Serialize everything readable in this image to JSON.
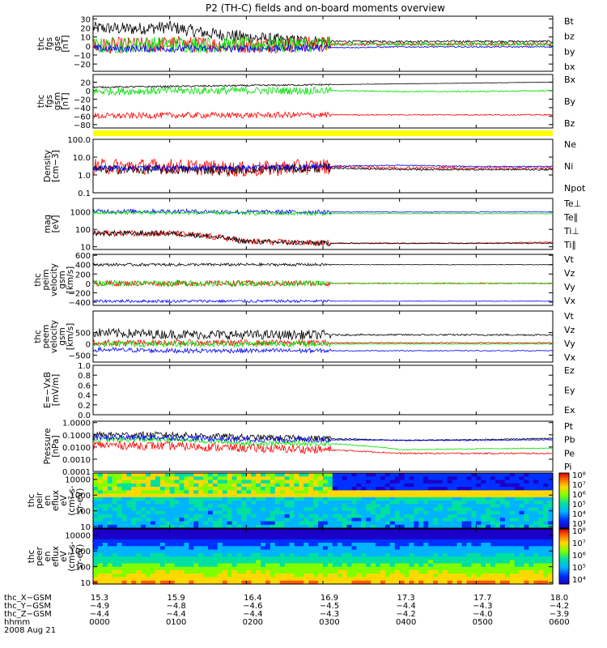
{
  "title": "P2 (TH-C) fields and on-board moments overview",
  "colors": {
    "black": "#000000",
    "red": "#ff0000",
    "green": "#00e000",
    "blue": "#0000ff",
    "yellow": "#ffff00"
  },
  "panels": [
    {
      "id": "fgs_gse",
      "ylabel": [
        "thc",
        "fgs",
        "gse",
        "[nT]"
      ],
      "ticks": [
        "30",
        "20",
        "10",
        "0",
        "−10",
        "−20"
      ],
      "tick_values": [
        30,
        20,
        10,
        0,
        -10,
        -20
      ],
      "ylim": [
        -28,
        33
      ],
      "log": false,
      "legend": [
        {
          "text": "Bt",
          "color": "#000000"
        },
        {
          "text": "bz",
          "color": "#ff0000"
        },
        {
          "text": "by",
          "color": "#00e000"
        },
        {
          "text": "bx",
          "color": "#0000ff"
        }
      ]
    },
    {
      "id": "fgs_gsm",
      "ylabel": [
        "thc",
        "fgs",
        "gsm",
        "[nT]"
      ],
      "ticks": [
        "20",
        "0",
        "−20",
        "−40",
        "−60",
        "−80"
      ],
      "tick_values": [
        20,
        0,
        -20,
        -40,
        -60,
        -80
      ],
      "ylim": [
        -88,
        38
      ],
      "log": false,
      "legend": [
        {
          "text": "Bx",
          "color": "#000000"
        },
        {
          "text": "By",
          "color": "#00e000"
        },
        {
          "text": "Bz",
          "color": "#ff0000"
        }
      ]
    },
    {
      "id": "density",
      "ylabel": [
        "Density",
        "[cm−3]"
      ],
      "ticks": [
        "100.0",
        "10.0",
        "1.0",
        "0.1"
      ],
      "tick_values": [
        100,
        10,
        1,
        0.1
      ],
      "ylim": [
        0.1,
        100
      ],
      "log": true,
      "legend": [
        {
          "text": "Ne",
          "color": "#ff0000"
        },
        {
          "text": "Ni",
          "color": "#000000"
        },
        {
          "text": "Npot",
          "color": "#0000ff"
        }
      ]
    },
    {
      "id": "temp",
      "ylabel": [
        "mag",
        "[eV]"
      ],
      "ticks": [
        "1000",
        "100",
        "10"
      ],
      "tick_values": [
        1000,
        100,
        10
      ],
      "ylim": [
        7,
        6000
      ],
      "log": true,
      "legend": [
        {
          "text": "Te⊥",
          "color": "#ff0000"
        },
        {
          "text": "Te∥",
          "color": "#000000"
        },
        {
          "text": "Ti⊥",
          "color": "#0000ff"
        },
        {
          "text": "Ti∥",
          "color": "#00e000"
        }
      ]
    },
    {
      "id": "peim_vel",
      "ylabel": [
        "thc",
        "peim",
        "velocity",
        "gsm",
        "[km/s]"
      ],
      "ticks": [
        "600",
        "400",
        "200",
        "0",
        "−200",
        "−400"
      ],
      "tick_values": [
        600,
        400,
        200,
        0,
        -200,
        -400
      ],
      "ylim": [
        -470,
        620
      ],
      "log": false,
      "legend": [
        {
          "text": "Vt",
          "color": "#000000"
        },
        {
          "text": "Vz",
          "color": "#ff0000"
        },
        {
          "text": "Vy",
          "color": "#00e000"
        },
        {
          "text": "Vx",
          "color": "#0000ff"
        }
      ]
    },
    {
      "id": "peem_vel",
      "ylabel": [
        "thc",
        "peem",
        "velocity",
        "gsm",
        "[km/s]"
      ],
      "ticks": [
        "500",
        "0",
        "−500"
      ],
      "tick_values": [
        500,
        0,
        -500
      ],
      "ylim": [
        -800,
        1450
      ],
      "log": false,
      "legend": [
        {
          "text": "Vt",
          "color": "#000000"
        },
        {
          "text": "Vz",
          "color": "#ff0000"
        },
        {
          "text": "Vy",
          "color": "#00e000"
        },
        {
          "text": "Vx",
          "color": "#0000ff"
        }
      ]
    },
    {
      "id": "efield",
      "ylabel": [
        "E=−VxB",
        "[mV/m]"
      ],
      "ticks": [
        "1.0",
        "0.8",
        "0.6",
        "0.4",
        "0.2",
        "0.0"
      ],
      "tick_values": [
        1.0,
        0.8,
        0.6,
        0.4,
        0.2,
        0.0
      ],
      "ylim": [
        0,
        1
      ],
      "log": false,
      "legend": [
        {
          "text": "Ez",
          "color": "#ff0000"
        },
        {
          "text": "Ey",
          "color": "#00e000"
        },
        {
          "text": "Ex",
          "color": "#0000ff"
        }
      ]
    },
    {
      "id": "pressure",
      "ylabel": [
        "Pressure",
        "[nPa]"
      ],
      "ticks": [
        "1.0000",
        "0.1000",
        "0.0100",
        "0.0010",
        "0.0001"
      ],
      "tick_values": [
        1,
        0.1,
        0.01,
        0.001,
        0.0001
      ],
      "ylim": [
        0.0001,
        1.3
      ],
      "log": true,
      "legend": [
        {
          "text": "Pt",
          "color": "#000000"
        },
        {
          "text": "Pb",
          "color": "#ff0000"
        },
        {
          "text": "Pe",
          "color": "#00e000"
        },
        {
          "text": "Pi",
          "color": "#0000ff"
        }
      ]
    },
    {
      "id": "peir_spec",
      "ylabel": [
        "thc",
        "peir",
        "en",
        "eflux",
        "eV",
        "(cm²-s-",
        "sr-eV)"
      ],
      "ticks": [
        "10000",
        "1000",
        "100",
        "10"
      ],
      "tick_values": [
        10000,
        1000,
        100,
        10
      ],
      "ylim": [
        8,
        25000
      ],
      "log": true,
      "legend": []
    },
    {
      "id": "peer_spec",
      "ylabel": [
        "thc",
        "peer",
        "en",
        "eflux",
        "eV",
        "(cm²-s-",
        "sr-eV)"
      ],
      "ticks": [
        "10000",
        "1000",
        "100",
        "10"
      ],
      "tick_values": [
        10000,
        1000,
        100,
        10
      ],
      "ylim": [
        8,
        25000
      ],
      "log": true,
      "legend": []
    }
  ],
  "colorbars": [
    {
      "labels": [
        "10⁸",
        "10⁷",
        "10⁶",
        "10⁵",
        "10⁴",
        "10³"
      ]
    },
    {
      "labels": [
        "10⁸",
        "10⁷",
        "10⁶",
        "10⁵",
        "10⁴"
      ]
    }
  ],
  "xaxis": {
    "rows": [
      {
        "label": "thc_X−GSM",
        "values": [
          "15.3",
          "15.9",
          "16.4",
          "16.9",
          "17.3",
          "17.7",
          "18.0"
        ]
      },
      {
        "label": "thc_Y−GSM",
        "values": [
          "−4.9",
          "−4.8",
          "−4.6",
          "−4.5",
          "−4.4",
          "−4.3",
          "−4.2"
        ]
      },
      {
        "label": "thc_Z−GSM",
        "values": [
          "−4.4",
          "−4.4",
          "−4.4",
          "−4.3",
          "−4.2",
          "−4.0",
          "−3.9"
        ]
      },
      {
        "label": "hhmm",
        "values": [
          "0000",
          "0100",
          "0200",
          "0300",
          "0400",
          "0500",
          "0600"
        ]
      }
    ],
    "date": "2008 Aug 21"
  },
  "chart_data": {
    "type": "line",
    "title": "P2 (TH-C) fields and on-board moments overview",
    "x_ticks": [
      "0000",
      "0100",
      "0200",
      "0300",
      "0400",
      "0500",
      "0600"
    ],
    "x_unit": "hhmm UT, 2008 Aug 21",
    "panels": [
      {
        "panel": "fgs_gse",
        "ylim": [
          -28,
          33
        ],
        "series": [
          {
            "name": "Bt",
            "x": [
              0,
              0.5,
              1.0,
              1.5,
              2.0,
              2.5,
              3.0,
              3.5,
              4.0,
              4.5,
              5.0,
              5.5,
              6.0
            ],
            "y": [
              20,
              19,
              21,
              14,
              10,
              6,
              5,
              5,
              5,
              5,
              5,
              5,
              5
            ]
          },
          {
            "name": "bz",
            "x": [
              0,
              1,
              2,
              3,
              4,
              5,
              6
            ],
            "y": [
              0,
              2,
              1,
              2,
              2,
              2,
              2
            ]
          },
          {
            "name": "by",
            "x": [
              0,
              1,
              2,
              3,
              4,
              5,
              6
            ],
            "y": [
              0,
              2,
              1,
              2,
              2,
              2,
              2
            ]
          },
          {
            "name": "bx",
            "x": [
              0,
              1,
              2,
              3,
              4,
              5,
              6
            ],
            "y": [
              -3,
              -3,
              -3,
              -2,
              -1,
              -1,
              -1
            ]
          }
        ]
      },
      {
        "panel": "fgs_gsm",
        "ylim": [
          -88,
          38
        ],
        "series": [
          {
            "name": "Bx",
            "x": [
              0,
              1,
              2,
              3,
              4,
              5,
              6
            ],
            "y": [
              8,
              10,
              12,
              14,
              16,
              18,
              20
            ]
          },
          {
            "name": "By",
            "x": [
              0,
              1,
              2,
              3,
              4,
              5,
              6
            ],
            "y": [
              -2,
              0,
              0,
              0,
              -2,
              -2,
              0
            ]
          },
          {
            "name": "Bz",
            "x": [
              0,
              1,
              2,
              3,
              4,
              5,
              6
            ],
            "y": [
              -60,
              -58,
              -58,
              -57,
              -57,
              -57,
              -57
            ]
          }
        ]
      },
      {
        "panel": "density",
        "ylim": [
          0.1,
          100
        ],
        "series": [
          {
            "name": "Ne",
            "x": [
              0,
              1,
              2,
              3,
              4,
              5,
              6
            ],
            "y": [
              3,
              3,
              2,
              3,
              2.5,
              2.5,
              2.5
            ]
          },
          {
            "name": "Ni",
            "x": [
              0,
              1,
              2,
              3,
              4,
              5,
              6
            ],
            "y": [
              2,
              2,
              2,
              2.5,
              2,
              2,
              2
            ]
          },
          {
            "name": "Npot",
            "x": [
              0,
              1,
              2,
              3,
              4,
              5,
              6
            ],
            "y": [
              2.5,
              2.5,
              2.5,
              3,
              3.5,
              3,
              3
            ]
          }
        ]
      },
      {
        "panel": "temp",
        "ylim": [
          7,
          6000
        ],
        "series": [
          {
            "name": "Te⊥",
            "x": [
              0,
              1,
              2,
              3,
              4,
              5,
              6
            ],
            "y": [
              60,
              60,
              20,
              16,
              16,
              16,
              18
            ]
          },
          {
            "name": "Te∥",
            "x": [
              0,
              1,
              2,
              3,
              4,
              5,
              6
            ],
            "y": [
              60,
              60,
              20,
              16,
              16,
              16,
              16
            ]
          },
          {
            "name": "Ti⊥",
            "x": [
              0,
              1,
              2,
              3,
              4,
              5,
              6
            ],
            "y": [
              1100,
              1100,
              1000,
              1000,
              1000,
              1000,
              1000
            ]
          },
          {
            "name": "Ti∥",
            "x": [
              0,
              1,
              2,
              3,
              4,
              5,
              6
            ],
            "y": [
              900,
              900,
              850,
              800,
              800,
              800,
              800
            ]
          }
        ]
      },
      {
        "panel": "peim_vel",
        "ylim": [
          -470,
          620
        ],
        "series": [
          {
            "name": "Vt",
            "x": [
              0,
              1,
              2,
              3,
              4,
              5,
              6
            ],
            "y": [
              400,
              400,
              400,
              400,
              400,
              400,
              400
            ]
          },
          {
            "name": "Vz",
            "x": [
              0,
              1,
              2,
              3,
              4,
              5,
              6
            ],
            "y": [
              0,
              0,
              0,
              0,
              0,
              0,
              0
            ]
          },
          {
            "name": "Vy",
            "x": [
              0,
              1,
              2,
              3,
              4,
              5,
              6
            ],
            "y": [
              0,
              0,
              0,
              0,
              0,
              0,
              0
            ]
          },
          {
            "name": "Vx",
            "x": [
              0,
              1,
              2,
              3,
              4,
              5,
              6
            ],
            "y": [
              -380,
              -380,
              -380,
              -380,
              -380,
              -380,
              -380
            ]
          }
        ]
      },
      {
        "panel": "peem_vel",
        "ylim": [
          -800,
          1450
        ],
        "series": [
          {
            "name": "Vt",
            "x": [
              0,
              1,
              2,
              3,
              4,
              5,
              6
            ],
            "y": [
              500,
              420,
              400,
              400,
              400,
              400,
              400
            ]
          },
          {
            "name": "Vz",
            "x": [
              0,
              1,
              2,
              3,
              4,
              5,
              6
            ],
            "y": [
              50,
              50,
              50,
              50,
              50,
              50,
              50
            ]
          },
          {
            "name": "Vy",
            "x": [
              0,
              1,
              2,
              3,
              4,
              5,
              6
            ],
            "y": [
              0,
              0,
              0,
              0,
              0,
              0,
              0
            ]
          },
          {
            "name": "Vx",
            "x": [
              0,
              1,
              2,
              3,
              4,
              5,
              6
            ],
            "y": [
              -250,
              -300,
              -300,
              -300,
              -300,
              -300,
              -300
            ]
          }
        ]
      },
      {
        "panel": "pressure",
        "ylim": [
          0.0001,
          1.3
        ],
        "series": [
          {
            "name": "Pt",
            "x": [
              0,
              1,
              2,
              3,
              4,
              5,
              6
            ],
            "y": [
              0.1,
              0.1,
              0.06,
              0.05,
              0.035,
              0.04,
              0.05
            ]
          },
          {
            "name": "Pb",
            "x": [
              0,
              1,
              2,
              3,
              4,
              5,
              6
            ],
            "y": [
              0.015,
              0.012,
              0.008,
              0.006,
              0.003,
              0.003,
              0.003
            ]
          },
          {
            "name": "Pe",
            "x": [
              0,
              1,
              2,
              3,
              4,
              5,
              6
            ],
            "y": [
              0.04,
              0.04,
              0.02,
              0.02,
              0.006,
              0.007,
              0.008
            ]
          },
          {
            "name": "Pi",
            "x": [
              0,
              1,
              2,
              3,
              4,
              5,
              6
            ],
            "y": [
              0.06,
              0.06,
              0.04,
              0.04,
              0.035,
              0.035,
              0.04
            ]
          }
        ]
      }
    ]
  }
}
